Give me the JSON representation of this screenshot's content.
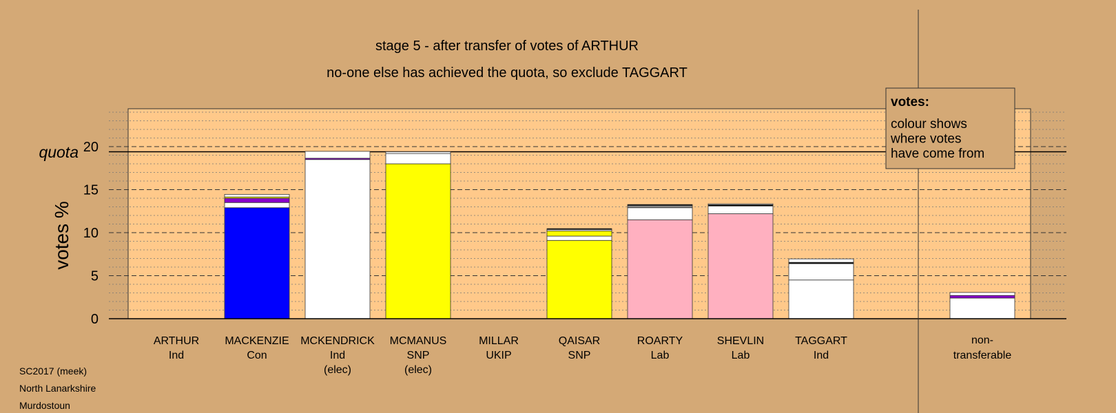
{
  "chart_data": {
    "type": "bar",
    "title": "stage 5 - after transfer of votes of ARTHUR",
    "subtitle": "no-one else has achieved the quota, so exclude TAGGART",
    "ylabel": "votes %",
    "ylim": [
      0,
      24
    ],
    "yticks": [
      "0",
      "5",
      "10",
      "15",
      "20"
    ],
    "quota_label": "quota",
    "quota": 19.4,
    "grid": true,
    "colors": {
      "background": "#d4a976",
      "plot": "#ffc98a",
      "Con": "#0000ff",
      "SNP": "#ffff00",
      "Lab": "#ffb0c0",
      "Ind": "#ffffff",
      "UKIP": "#8800cc",
      "other": "#ffffff"
    },
    "legend": {
      "title": "votes:",
      "lines": [
        "colour shows",
        "where votes",
        "have come from"
      ],
      "position": "top-right"
    },
    "candidates": [
      {
        "name": "ARTHUR",
        "party": "Ind",
        "note": "",
        "segments": []
      },
      {
        "name": "MACKENZIE",
        "party": "Con",
        "note": "",
        "segments": [
          {
            "value": 12.9,
            "color": "#0000ff"
          },
          {
            "value": 0.6,
            "color": "#ffffff"
          },
          {
            "value": 0.5,
            "color": "#8800cc"
          },
          {
            "value": 0.15,
            "color": "#ffff00"
          },
          {
            "value": 0.3,
            "color": "#ffffff"
          }
        ]
      },
      {
        "name": "MCKENDRICK",
        "party": "Ind",
        "note": "(elec)",
        "segments": [
          {
            "value": 18.5,
            "color": "#ffffff"
          },
          {
            "value": 0.15,
            "color": "#8800cc"
          },
          {
            "value": 0.8,
            "color": "#ffffff"
          }
        ]
      },
      {
        "name": "MCMANUS",
        "party": "SNP",
        "note": "(elec)",
        "segments": [
          {
            "value": 18.0,
            "color": "#ffff00"
          },
          {
            "value": 1.2,
            "color": "#ffffff"
          },
          {
            "value": 0.2,
            "color": "#ffffff"
          }
        ]
      },
      {
        "name": "MILLAR",
        "party": "UKIP",
        "note": "",
        "segments": []
      },
      {
        "name": "QAISAR",
        "party": "SNP",
        "note": "",
        "segments": [
          {
            "value": 9.1,
            "color": "#ffff00"
          },
          {
            "value": 0.5,
            "color": "#ffffff"
          },
          {
            "value": 0.6,
            "color": "#ffff00"
          },
          {
            "value": 0.15,
            "color": "#ffffff"
          },
          {
            "value": 0.12,
            "color": "#000000"
          }
        ]
      },
      {
        "name": "ROARTY",
        "party": "Lab",
        "note": "",
        "segments": [
          {
            "value": 11.5,
            "color": "#ffb0c0"
          },
          {
            "value": 1.4,
            "color": "#ffffff"
          },
          {
            "value": 0.25,
            "color": "#888888"
          },
          {
            "value": 0.12,
            "color": "#000000"
          }
        ]
      },
      {
        "name": "SHEVLIN",
        "party": "Lab",
        "note": "",
        "segments": [
          {
            "value": 12.2,
            "color": "#ffb0c0"
          },
          {
            "value": 0.9,
            "color": "#ffffff"
          },
          {
            "value": 0.15,
            "color": "#000000"
          },
          {
            "value": 0.1,
            "color": "#ffffff"
          }
        ]
      },
      {
        "name": "TAGGART",
        "party": "Ind",
        "note": "",
        "segments": [
          {
            "value": 4.5,
            "color": "#ffffff"
          },
          {
            "value": 1.9,
            "color": "#ffffff"
          },
          {
            "value": 0.15,
            "color": "#000000"
          },
          {
            "value": 0.4,
            "color": "#ffffff"
          }
        ]
      }
    ],
    "nontransferable": {
      "line1": "non-",
      "line2": "transferable",
      "segments": [
        {
          "value": 2.4,
          "color": "#ffffff"
        },
        {
          "value": 0.3,
          "color": "#8800cc"
        },
        {
          "value": 0.35,
          "color": "#ffffff"
        }
      ]
    }
  },
  "footer": {
    "line1": "SC2017 (meek)",
    "line2": "North Lanarkshire",
    "line3": "Murdostoun"
  }
}
